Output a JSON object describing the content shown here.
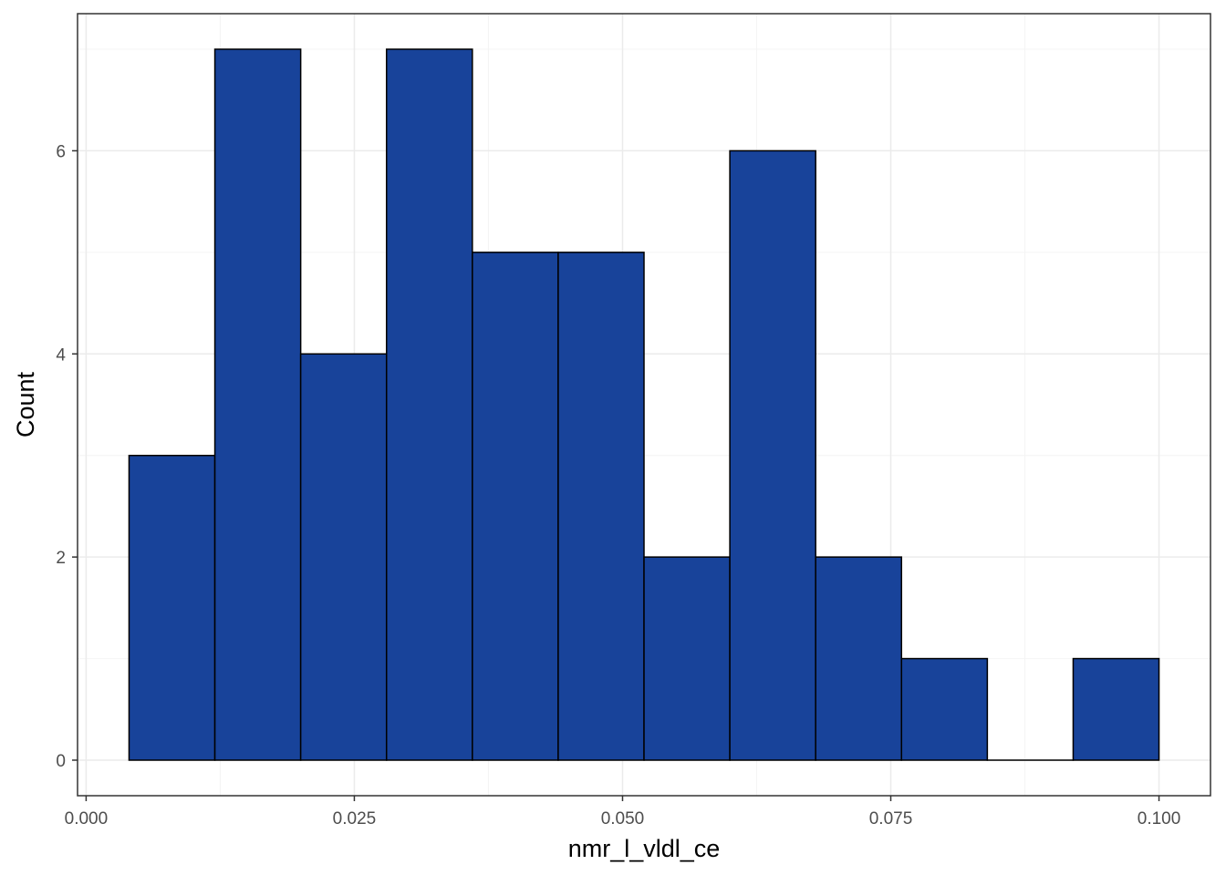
{
  "chart_data": {
    "type": "bar",
    "subtype": "histogram",
    "xlabel": "nmr_l_vldl_ce",
    "ylabel": "Count",
    "bin_width": 0.008,
    "bins": [
      {
        "start": 0.004,
        "end": 0.012,
        "count": 3
      },
      {
        "start": 0.012,
        "end": 0.02,
        "count": 7
      },
      {
        "start": 0.02,
        "end": 0.028,
        "count": 4
      },
      {
        "start": 0.028,
        "end": 0.036,
        "count": 7
      },
      {
        "start": 0.036,
        "end": 0.044,
        "count": 5
      },
      {
        "start": 0.044,
        "end": 0.052,
        "count": 5
      },
      {
        "start": 0.052,
        "end": 0.06,
        "count": 2
      },
      {
        "start": 0.06,
        "end": 0.068,
        "count": 6
      },
      {
        "start": 0.068,
        "end": 0.076,
        "count": 2
      },
      {
        "start": 0.076,
        "end": 0.084,
        "count": 1
      },
      {
        "start": 0.084,
        "end": 0.092,
        "count": 0
      },
      {
        "start": 0.092,
        "end": 0.1,
        "count": 1
      }
    ],
    "xlim": [
      -0.0008,
      0.1048
    ],
    "ylim": [
      -0.35,
      7.35
    ],
    "x_ticks": [
      0,
      0.025,
      0.05,
      0.075,
      0.1
    ],
    "x_tick_labels": [
      "0.000",
      "0.025",
      "0.050",
      "0.075",
      "0.100"
    ],
    "y_ticks": [
      0,
      2,
      4,
      6
    ],
    "y_tick_labels": [
      "0",
      "2",
      "4",
      "6"
    ],
    "x_minor_ticks": [
      0.0125,
      0.0375,
      0.0625,
      0.0875
    ],
    "y_minor_ticks": [
      1,
      3,
      5,
      7
    ],
    "grid": true,
    "legend": "none",
    "colors": {
      "bar_fill": "#18439A",
      "bar_stroke": "#000000",
      "grid_major": "#EBEBEB",
      "grid_minor": "#F4F4F4",
      "panel_border": "#333333",
      "tick_label": "#4D4D4D",
      "axis_title": "#000000",
      "background": "#FFFFFF"
    }
  }
}
